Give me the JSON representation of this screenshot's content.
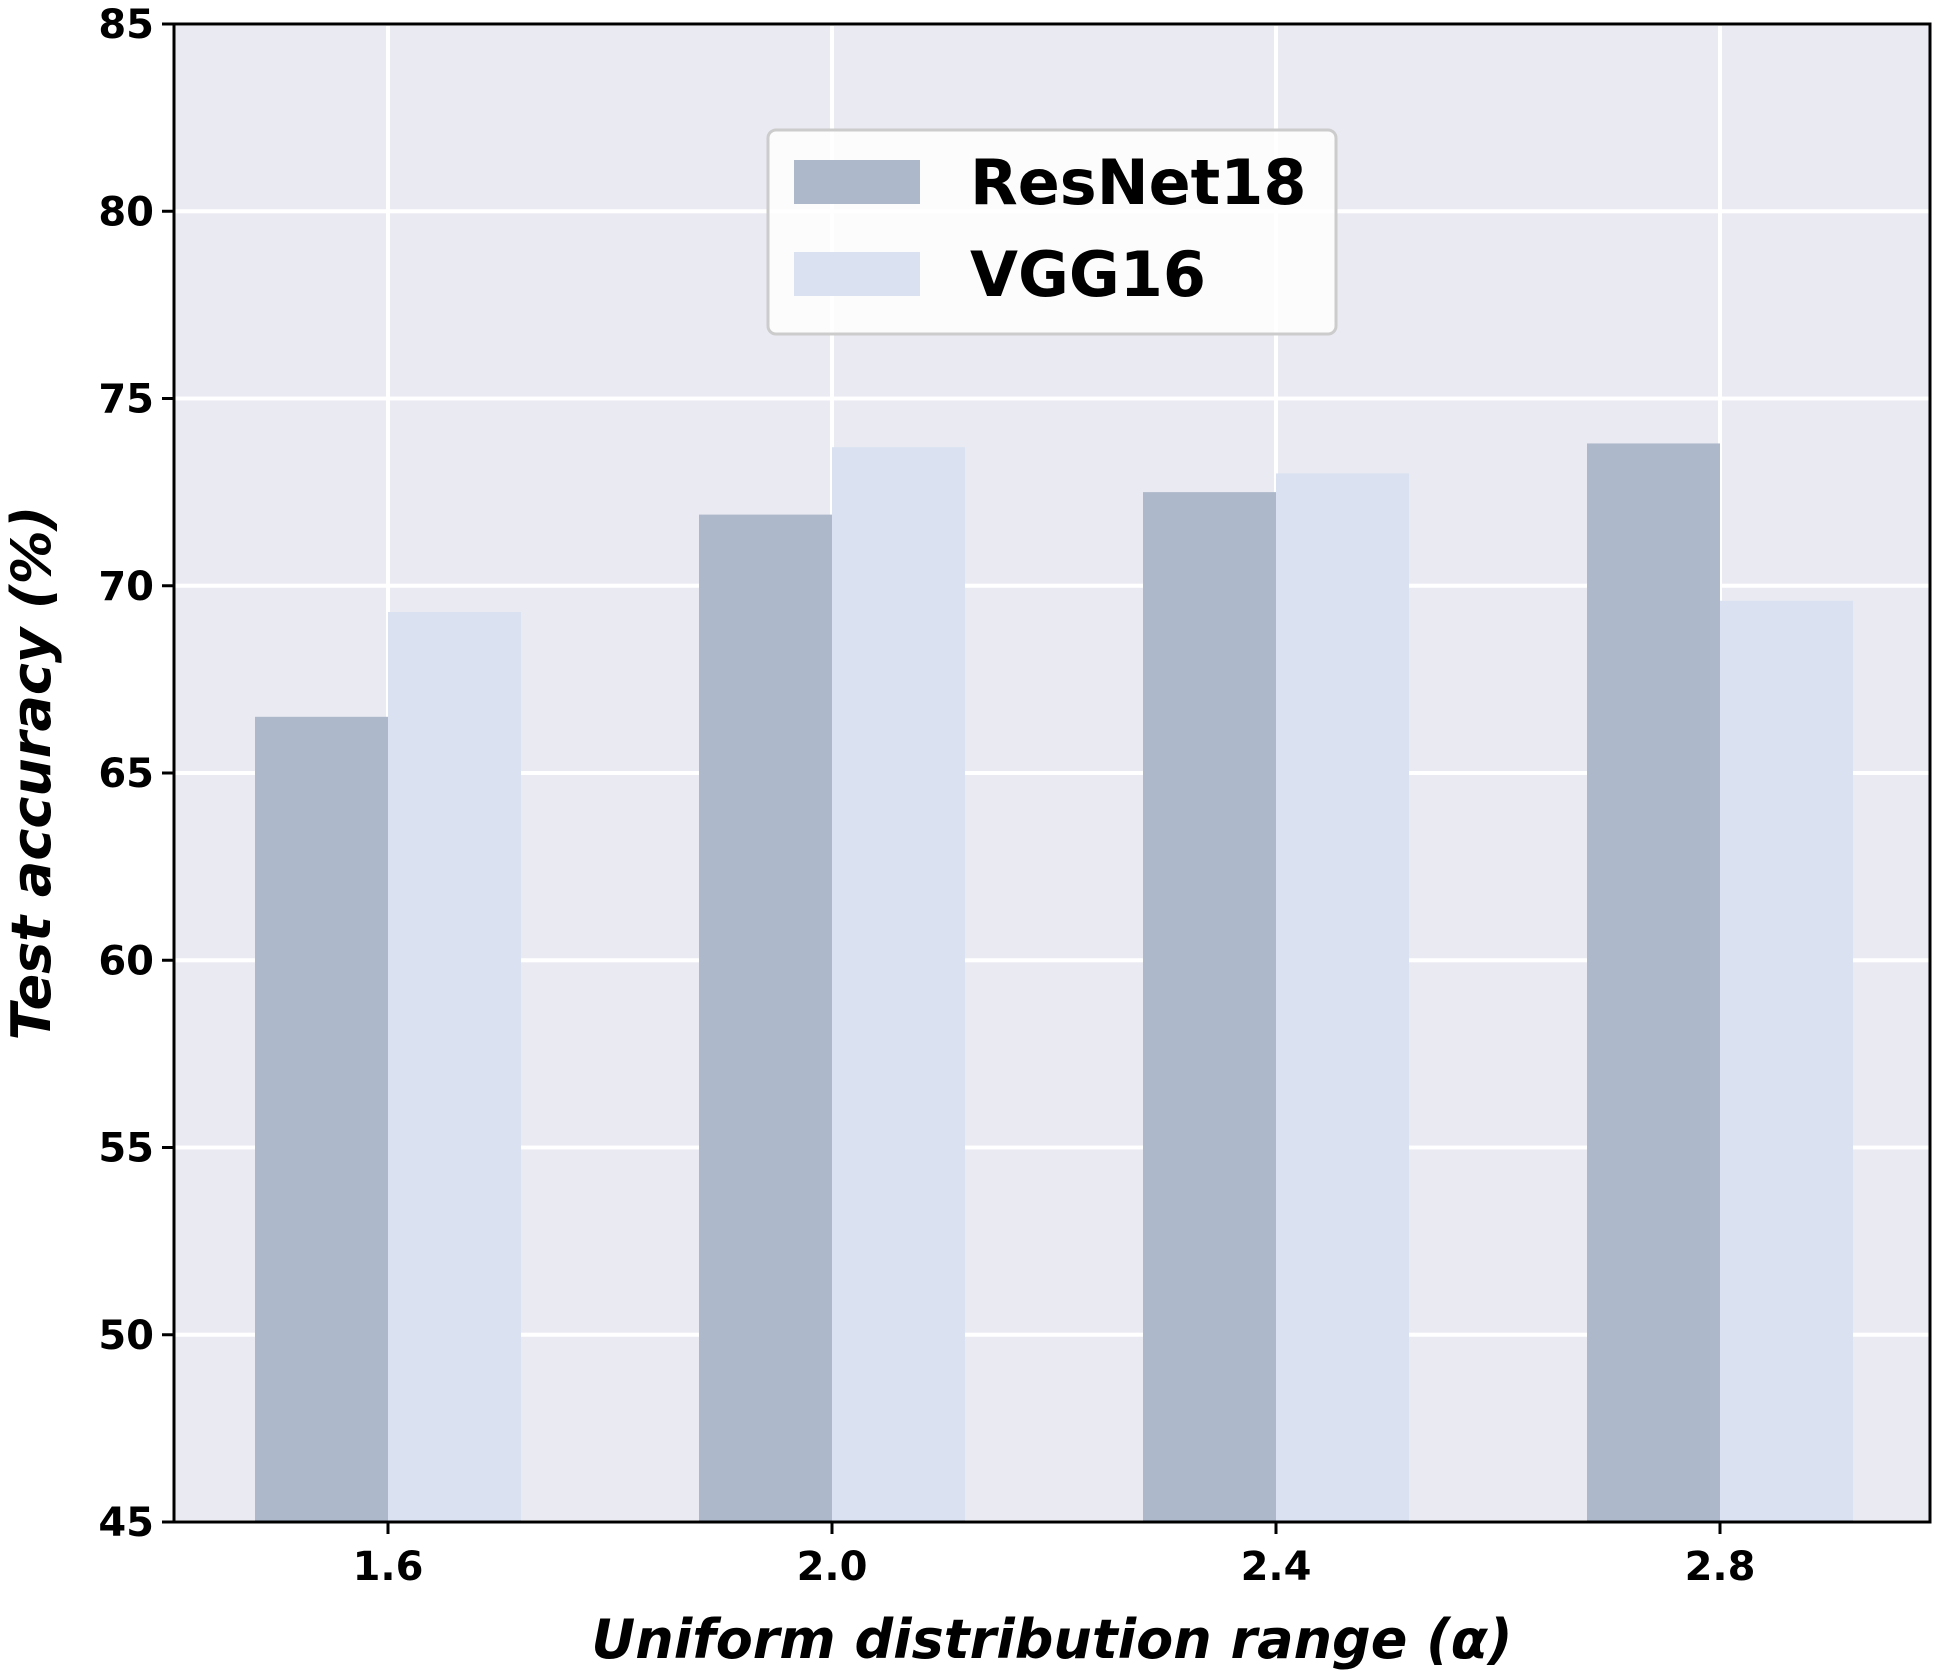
{
  "chart_data": {
    "type": "bar",
    "categories": [
      "1.6",
      "2.0",
      "2.4",
      "2.8"
    ],
    "series": [
      {
        "name": "ResNet18",
        "color": "#adb8ca",
        "values": [
          66.5,
          71.9,
          72.5,
          73.8
        ]
      },
      {
        "name": "VGG16",
        "color": "#dae2f2",
        "values": [
          69.3,
          73.7,
          73.0,
          69.6
        ]
      }
    ],
    "xlabel": "Uniform distribution range (α)",
    "ylabel": "Test accuracy (%)",
    "ylim": [
      45,
      85
    ],
    "yticks": [
      "45",
      "50",
      "55",
      "60",
      "65",
      "70",
      "75",
      "80",
      "85"
    ],
    "grid": true,
    "legend_position": "top-center",
    "colors": {
      "plot_background": "#eaeaf2",
      "grid": "#ffffff",
      "axes": "#000000"
    }
  }
}
